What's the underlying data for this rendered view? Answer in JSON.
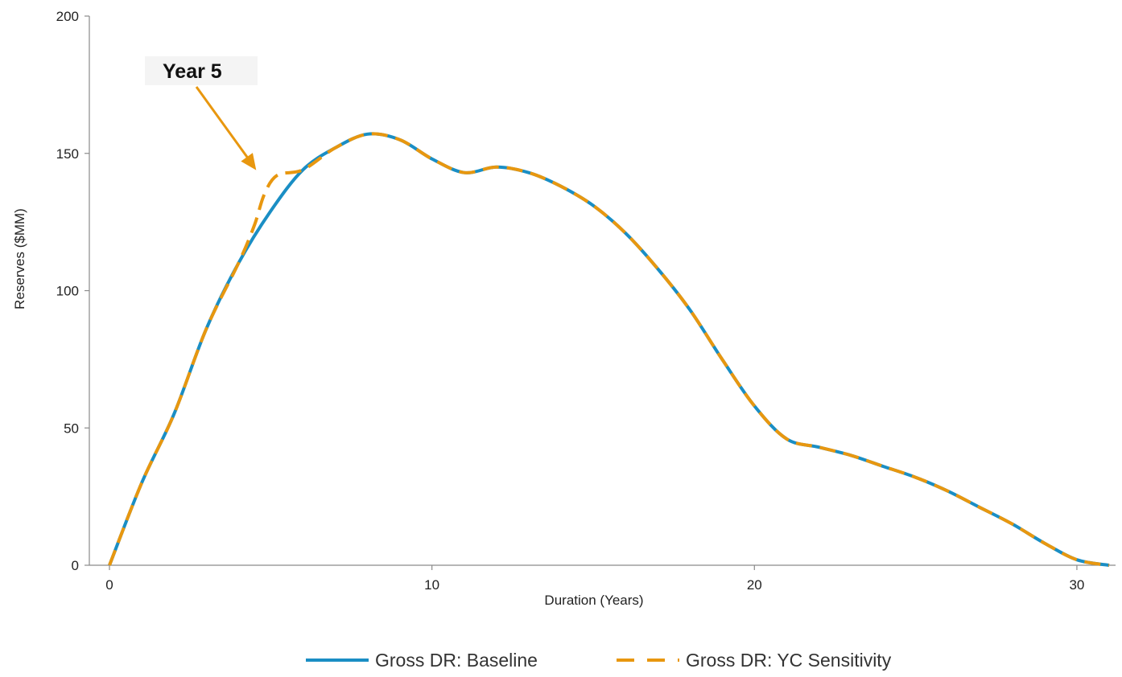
{
  "chart_data": {
    "type": "line",
    "xlabel": "Duration (Years)",
    "ylabel": "Reserves ($MM)",
    "xlim": [
      0,
      31
    ],
    "ylim": [
      0,
      200
    ],
    "x_ticks": [
      0,
      10,
      20,
      30
    ],
    "y_ticks": [
      0,
      50,
      100,
      150,
      200
    ],
    "grid": false,
    "legend_position": "bottom",
    "series": [
      {
        "name": "Gross DR: Baseline",
        "color": "#1a8ec4",
        "style": "solid",
        "points": [
          [
            0,
            0
          ],
          [
            1,
            30
          ],
          [
            2,
            55
          ],
          [
            3,
            86
          ],
          [
            4,
            110
          ],
          [
            5,
            129
          ],
          [
            6,
            144
          ],
          [
            7,
            152
          ],
          [
            8,
            157
          ],
          [
            9,
            155
          ],
          [
            10,
            148
          ],
          [
            11,
            143
          ],
          [
            12,
            145
          ],
          [
            13,
            143
          ],
          [
            14,
            138
          ],
          [
            15,
            131
          ],
          [
            16,
            121
          ],
          [
            17,
            108
          ],
          [
            18,
            93
          ],
          [
            19,
            75
          ],
          [
            20,
            58
          ],
          [
            21,
            46
          ],
          [
            22,
            43
          ],
          [
            23,
            40
          ],
          [
            24,
            36
          ],
          [
            25,
            32
          ],
          [
            26,
            27
          ],
          [
            27,
            21
          ],
          [
            28,
            15
          ],
          [
            29,
            8
          ],
          [
            30,
            2
          ],
          [
            31,
            0
          ]
        ]
      },
      {
        "name": "Gross DR: YC Sensitivity",
        "color": "#e8970f",
        "style": "dashed",
        "points": [
          [
            0,
            0
          ],
          [
            1,
            30
          ],
          [
            2,
            55
          ],
          [
            3,
            86
          ],
          [
            4,
            110
          ],
          [
            4.5,
            124
          ],
          [
            4.8,
            135
          ],
          [
            5.2,
            142
          ],
          [
            6,
            144
          ],
          [
            7,
            152
          ],
          [
            8,
            157
          ],
          [
            9,
            155
          ],
          [
            10,
            148
          ],
          [
            11,
            143
          ],
          [
            12,
            145
          ],
          [
            13,
            143
          ],
          [
            14,
            138
          ],
          [
            15,
            131
          ],
          [
            16,
            121
          ],
          [
            17,
            108
          ],
          [
            18,
            93
          ],
          [
            19,
            75
          ],
          [
            20,
            58
          ],
          [
            21,
            46
          ],
          [
            22,
            43
          ],
          [
            23,
            40
          ],
          [
            24,
            36
          ],
          [
            25,
            32
          ],
          [
            26,
            27
          ],
          [
            27,
            21
          ],
          [
            28,
            15
          ],
          [
            29,
            8
          ],
          [
            30,
            2
          ],
          [
            31,
            0
          ]
        ]
      }
    ],
    "annotation": {
      "text": "Year 5",
      "points_to": [
        4.6,
        143
      ],
      "color": "#e8970f"
    }
  }
}
